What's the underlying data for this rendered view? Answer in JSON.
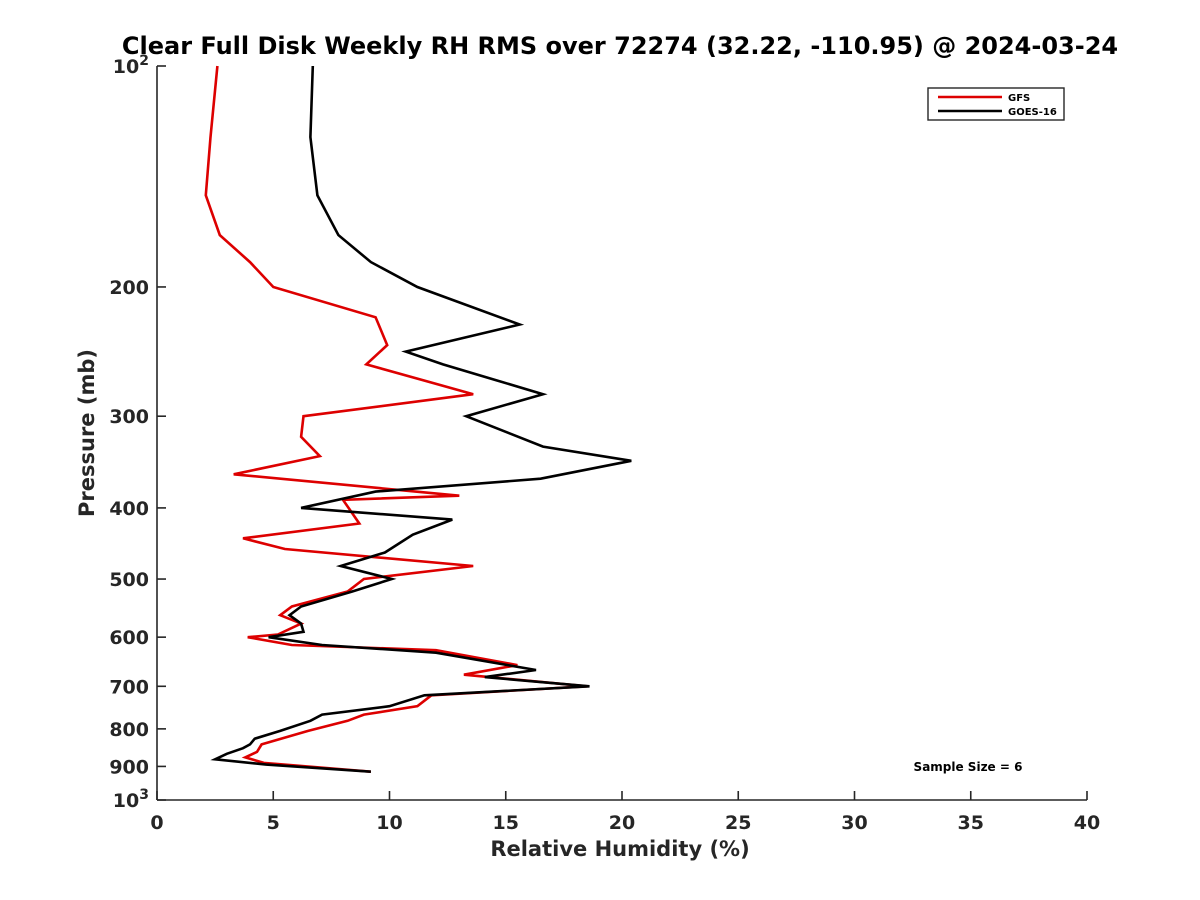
{
  "chart_data": {
    "type": "line",
    "title": "Clear Full Disk Weekly RH RMS over 72274 (32.22, -110.95) @ 2024-03-24",
    "xlabel": "Relative Humidity (%)",
    "ylabel": "Pressure (mb)",
    "xlim": [
      0,
      40
    ],
    "ylim": [
      100,
      1000
    ],
    "y_scale": "log",
    "y_reversed": true,
    "x_ticks": [
      "0",
      "5",
      "10",
      "15",
      "20",
      "25",
      "30",
      "35",
      "40"
    ],
    "y_ticks": [
      {
        "value": 100,
        "label": "10",
        "sup": "2"
      },
      {
        "value": 200,
        "label": "200",
        "sup": ""
      },
      {
        "value": 300,
        "label": "300",
        "sup": ""
      },
      {
        "value": 400,
        "label": "400",
        "sup": ""
      },
      {
        "value": 500,
        "label": "500",
        "sup": ""
      },
      {
        "value": 600,
        "label": "600",
        "sup": ""
      },
      {
        "value": 700,
        "label": "700",
        "sup": ""
      },
      {
        "value": 800,
        "label": "800",
        "sup": ""
      },
      {
        "value": 900,
        "label": "900",
        "sup": ""
      },
      {
        "value": 1000,
        "label": "10",
        "sup": "3"
      }
    ],
    "grid": false,
    "legend_position": "top-right",
    "annotation": "Sample Size = 6",
    "series": [
      {
        "name": "GFS",
        "color": "#dd0000",
        "points": [
          [
            2.6,
            100
          ],
          [
            2.3,
            125
          ],
          [
            2.1,
            150
          ],
          [
            2.7,
            170
          ],
          [
            4.0,
            185
          ],
          [
            5.0,
            200
          ],
          [
            9.4,
            220
          ],
          [
            9.9,
            240
          ],
          [
            9.0,
            255
          ],
          [
            13.6,
            280
          ],
          [
            6.3,
            300
          ],
          [
            6.2,
            320
          ],
          [
            7.0,
            340
          ],
          [
            3.3,
            360
          ],
          [
            13.0,
            385
          ],
          [
            8.0,
            390
          ],
          [
            8.7,
            420
          ],
          [
            3.7,
            440
          ],
          [
            5.5,
            455
          ],
          [
            13.6,
            480
          ],
          [
            8.9,
            500
          ],
          [
            8.2,
            520
          ],
          [
            5.8,
            545
          ],
          [
            5.3,
            560
          ],
          [
            6.2,
            575
          ],
          [
            5.2,
            595
          ],
          [
            3.9,
            600
          ],
          [
            5.8,
            615
          ],
          [
            12.0,
            625
          ],
          [
            15.5,
            655
          ],
          [
            13.2,
            675
          ],
          [
            18.5,
            700
          ],
          [
            11.8,
            720
          ],
          [
            11.2,
            745
          ],
          [
            8.9,
            765
          ],
          [
            8.2,
            780
          ],
          [
            6.5,
            805
          ],
          [
            4.5,
            840
          ],
          [
            4.3,
            860
          ],
          [
            3.8,
            875
          ],
          [
            4.6,
            890
          ],
          [
            9.2,
            915
          ]
        ]
      },
      {
        "name": "GOES-16",
        "color": "#000000",
        "points": [
          [
            6.7,
            100
          ],
          [
            6.6,
            125
          ],
          [
            6.9,
            150
          ],
          [
            7.8,
            170
          ],
          [
            9.2,
            185
          ],
          [
            11.2,
            200
          ],
          [
            15.6,
            225
          ],
          [
            10.7,
            245
          ],
          [
            12.3,
            255
          ],
          [
            16.6,
            280
          ],
          [
            13.3,
            300
          ],
          [
            16.6,
            330
          ],
          [
            20.4,
            345
          ],
          [
            16.5,
            365
          ],
          [
            9.4,
            380
          ],
          [
            6.2,
            400
          ],
          [
            12.7,
            415
          ],
          [
            11.0,
            435
          ],
          [
            9.8,
            460
          ],
          [
            7.9,
            480
          ],
          [
            10.1,
            500
          ],
          [
            8.4,
            520
          ],
          [
            6.2,
            545
          ],
          [
            5.7,
            560
          ],
          [
            6.2,
            575
          ],
          [
            6.3,
            590
          ],
          [
            4.8,
            600
          ],
          [
            7.1,
            615
          ],
          [
            12.0,
            630
          ],
          [
            16.3,
            665
          ],
          [
            14.1,
            680
          ],
          [
            18.6,
            700
          ],
          [
            11.5,
            720
          ],
          [
            10.0,
            745
          ],
          [
            7.1,
            765
          ],
          [
            6.6,
            780
          ],
          [
            5.3,
            805
          ],
          [
            4.2,
            825
          ],
          [
            4.0,
            840
          ],
          [
            3.7,
            850
          ],
          [
            3.0,
            865
          ],
          [
            2.5,
            880
          ],
          [
            4.7,
            895
          ],
          [
            9.2,
            915
          ]
        ]
      }
    ]
  }
}
